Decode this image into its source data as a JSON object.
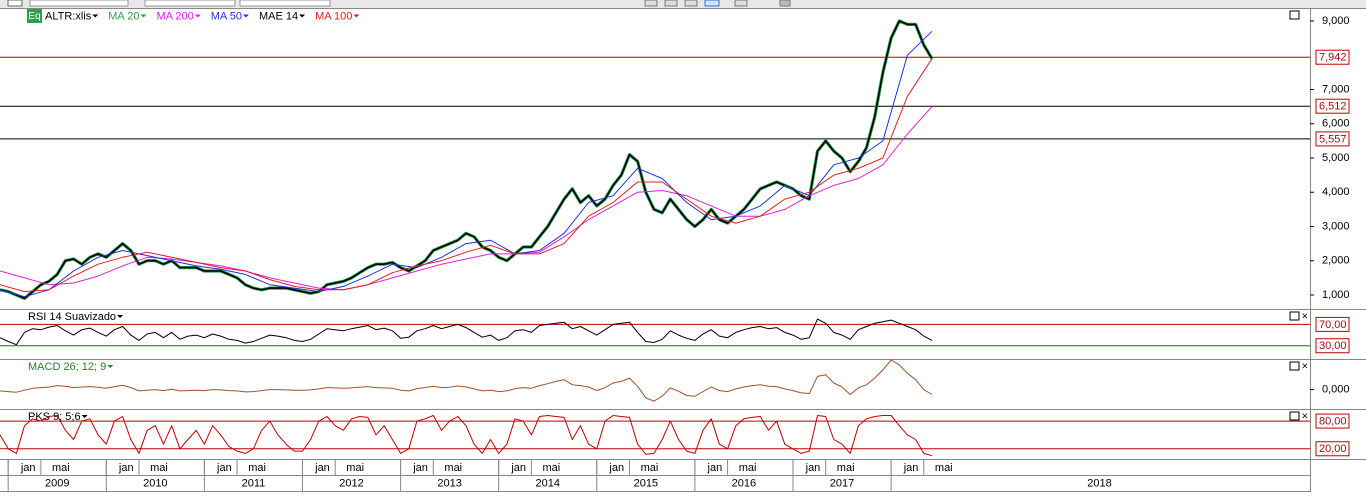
{
  "source_icon": "Eq",
  "chart_data": [
    {
      "type": "line",
      "xlim": [
        "2008-12",
        "2022-04"
      ],
      "ylim": [
        620,
        9350
      ],
      "x": [
        "2008-12",
        "2009-01",
        "2009-02",
        "2009-03",
        "2009-04",
        "2009-05",
        "2009-06",
        "2009-07",
        "2009-08",
        "2009-09",
        "2009-10",
        "2009-11",
        "2009-12",
        "2010-01",
        "2010-02",
        "2010-03",
        "2010-04",
        "2010-05",
        "2010-06",
        "2010-07",
        "2010-08",
        "2010-09",
        "2010-10",
        "2010-11",
        "2010-12",
        "2011-01",
        "2011-02",
        "2011-03",
        "2011-04",
        "2011-05",
        "2011-06",
        "2011-07",
        "2011-08",
        "2011-09",
        "2011-10",
        "2011-11",
        "2011-12",
        "2012-01",
        "2012-02",
        "2012-03",
        "2012-04",
        "2012-05",
        "2012-06",
        "2012-07",
        "2012-08",
        "2012-09",
        "2012-10",
        "2012-11",
        "2012-12",
        "2013-01",
        "2013-02",
        "2013-03",
        "2013-04",
        "2013-05",
        "2013-06",
        "2013-07",
        "2013-08",
        "2013-09",
        "2013-10",
        "2013-11",
        "2013-12",
        "2014-01",
        "2014-02",
        "2014-03",
        "2014-04",
        "2014-05",
        "2014-06",
        "2014-07",
        "2014-08",
        "2014-09",
        "2014-10",
        "2014-11",
        "2014-12",
        "2015-01",
        "2015-02",
        "2015-03",
        "2015-04",
        "2015-05",
        "2015-06",
        "2015-07",
        "2015-08",
        "2015-09",
        "2015-10",
        "2015-11",
        "2015-12",
        "2016-01",
        "2016-02",
        "2016-03",
        "2016-04",
        "2016-05",
        "2016-06",
        "2016-07",
        "2016-08",
        "2016-09",
        "2016-10",
        "2016-11",
        "2016-12",
        "2017-01",
        "2017-02",
        "2017-03",
        "2017-04",
        "2017-05",
        "2017-06",
        "2017-07",
        "2017-08",
        "2017-09",
        "2017-10",
        "2017-11",
        "2017-12",
        "2018-01",
        "2018-02",
        "2018-03",
        "2018-04",
        "2018-05",
        "2018-06"
      ],
      "series": [
        {
          "name": "ALTR:xlis",
          "color": "#000000",
          "values": [
            1150,
            1100,
            1000,
            900,
            1100,
            1300,
            1400,
            1600,
            2000,
            2050,
            1900,
            2100,
            2200,
            2100,
            2300,
            2500,
            2300,
            1900,
            2000,
            2000,
            1900,
            2000,
            1800,
            1800,
            1800,
            1700,
            1700,
            1700,
            1600,
            1500,
            1300,
            1200,
            1150,
            1200,
            1200,
            1200,
            1150,
            1100,
            1050,
            1100,
            1300,
            1350,
            1400,
            1500,
            1650,
            1800,
            1900,
            1900,
            1950,
            1800,
            1700,
            1850,
            2000,
            2300,
            2400,
            2500,
            2600,
            2800,
            2700,
            2400,
            2300,
            2100,
            2000,
            2200,
            2400,
            2400,
            2700,
            3000,
            3400,
            3800,
            4100,
            3700,
            3900,
            3600,
            3800,
            4200,
            4500,
            5100,
            4900,
            4000,
            3500,
            3400,
            3800,
            3500,
            3200,
            3000,
            3200,
            3500,
            3200,
            3100,
            3300,
            3500,
            3800,
            4100,
            4200,
            4300,
            4200,
            4100,
            3900,
            3800,
            5200,
            5500,
            5200,
            5000,
            4600,
            4900,
            5300,
            6200,
            7500,
            8500,
            9000,
            8900,
            8900,
            8300,
            7900
          ]
        },
        {
          "name": "MA 20",
          "color": "#2e9e4f"
        },
        {
          "name": "MA 200",
          "color": "#e020e0",
          "x": [
            "2008-12",
            "2009-03",
            "2009-06",
            "2009-09",
            "2009-12",
            "2010-03",
            "2010-06",
            "2010-09",
            "2010-12",
            "2011-03",
            "2011-06",
            "2011-09",
            "2011-12",
            "2012-03",
            "2012-06",
            "2012-09",
            "2012-12",
            "2013-03",
            "2013-06",
            "2013-09",
            "2013-12",
            "2014-03",
            "2014-06",
            "2014-09",
            "2014-12",
            "2015-03",
            "2015-06",
            "2015-09",
            "2015-12",
            "2016-03",
            "2016-06",
            "2016-09",
            "2016-12",
            "2017-03",
            "2017-06",
            "2017-09",
            "2017-12",
            "2018-03",
            "2018-06"
          ],
          "values": [
            1700,
            1500,
            1300,
            1350,
            1550,
            1850,
            2100,
            2050,
            1950,
            1850,
            1700,
            1500,
            1350,
            1200,
            1150,
            1300,
            1500,
            1700,
            1900,
            2050,
            2200,
            2200,
            2250,
            2700,
            3200,
            3600,
            4000,
            4050,
            3900,
            3600,
            3300,
            3300,
            3500,
            3900,
            4200,
            4400,
            4800,
            5700,
            6500
          ]
        },
        {
          "name": "MA 50",
          "color": "#2030e0",
          "x": [
            "2008-12",
            "2009-03",
            "2009-06",
            "2009-09",
            "2009-12",
            "2010-03",
            "2010-06",
            "2010-09",
            "2010-12",
            "2011-03",
            "2011-06",
            "2011-09",
            "2011-12",
            "2012-03",
            "2012-06",
            "2012-09",
            "2012-12",
            "2013-03",
            "2013-06",
            "2013-09",
            "2013-12",
            "2014-03",
            "2014-06",
            "2014-09",
            "2014-12",
            "2015-03",
            "2015-06",
            "2015-09",
            "2015-12",
            "2016-03",
            "2016-06",
            "2016-09",
            "2016-12",
            "2017-03",
            "2017-06",
            "2017-09",
            "2017-12",
            "2018-03",
            "2018-06"
          ],
          "values": [
            1150,
            950,
            1150,
            1700,
            2100,
            2300,
            2150,
            2000,
            1850,
            1750,
            1600,
            1300,
            1200,
            1100,
            1250,
            1550,
            1900,
            1800,
            2100,
            2500,
            2600,
            2200,
            2300,
            2800,
            3700,
            3900,
            4700,
            4400,
            3700,
            3200,
            3300,
            3600,
            4200,
            3900,
            4800,
            5000,
            5500,
            8000,
            8700
          ]
        },
        {
          "name": "MAE 14",
          "color": "#000000"
        },
        {
          "name": "MA 100",
          "color": "#e02020",
          "x": [
            "2008-12",
            "2009-03",
            "2009-06",
            "2009-09",
            "2009-12",
            "2010-03",
            "2010-06",
            "2010-09",
            "2010-12",
            "2011-03",
            "2011-06",
            "2011-09",
            "2011-12",
            "2012-03",
            "2012-06",
            "2012-09",
            "2012-12",
            "2013-03",
            "2013-06",
            "2013-09",
            "2013-12",
            "2014-03",
            "2014-06",
            "2014-09",
            "2014-12",
            "2015-03",
            "2015-06",
            "2015-09",
            "2015-12",
            "2016-03",
            "2016-06",
            "2016-09",
            "2016-12",
            "2017-03",
            "2017-06",
            "2017-09",
            "2017-12",
            "2018-03",
            "2018-06"
          ],
          "values": [
            1300,
            1100,
            1150,
            1550,
            1900,
            2100,
            2250,
            2100,
            1950,
            1800,
            1700,
            1450,
            1250,
            1150,
            1150,
            1300,
            1650,
            1850,
            2000,
            2250,
            2450,
            2200,
            2200,
            2500,
            3300,
            3700,
            4300,
            4300,
            3800,
            3300,
            3100,
            3300,
            3800,
            4000,
            4500,
            4700,
            5000,
            6800,
            7900
          ]
        }
      ],
      "yticks": [
        {
          "value": 1000,
          "label": "1,000"
        },
        {
          "value": 2000,
          "label": "2,000"
        },
        {
          "value": 3000,
          "label": "3,000"
        },
        {
          "value": 4000,
          "label": "4,000"
        },
        {
          "value": 5000,
          "label": "5,000"
        },
        {
          "value": 6000,
          "label": "6,000"
        },
        {
          "value": 7000,
          "label": "7,000"
        },
        {
          "value": 9000,
          "label": "9,000"
        }
      ],
      "hlines": [
        {
          "value": 7942,
          "label": "7,942",
          "color": "#c00000"
        },
        {
          "value": 6512,
          "label": "6,512",
          "color": "#000000"
        },
        {
          "value": 5557,
          "label": "5,557",
          "color": "#000000"
        }
      ],
      "xticks": [
        {
          "value": "2009-01",
          "label": "jan"
        },
        {
          "value": "2009-05",
          "label": "mai"
        },
        {
          "value": "2010-01",
          "label": "jan"
        },
        {
          "value": "2010-05",
          "label": "mai"
        },
        {
          "value": "2011-01",
          "label": "jan"
        },
        {
          "value": "2011-05",
          "label": "mai"
        },
        {
          "value": "2012-01",
          "label": "jan"
        },
        {
          "value": "2012-05",
          "label": "mai"
        },
        {
          "value": "2013-01",
          "label": "jan"
        },
        {
          "value": "2013-05",
          "label": "mai"
        },
        {
          "value": "2014-01",
          "label": "jan"
        },
        {
          "value": "2014-05",
          "label": "mai"
        },
        {
          "value": "2015-01",
          "label": "jan"
        },
        {
          "value": "2015-05",
          "label": "mai"
        },
        {
          "value": "2016-01",
          "label": "jan"
        },
        {
          "value": "2016-05",
          "label": "mai"
        },
        {
          "value": "2017-01",
          "label": "jan"
        },
        {
          "value": "2017-05",
          "label": "mai"
        },
        {
          "value": "2018-01",
          "label": "jan"
        },
        {
          "value": "2018-05",
          "label": "mai"
        }
      ],
      "years": [
        2009,
        2010,
        2011,
        2012,
        2013,
        2014,
        2015,
        2016,
        2017,
        2018
      ]
    },
    {
      "type": "line",
      "title": "RSI 14 Suavizado",
      "color": "#000000",
      "ylim": [
        7,
        97
      ],
      "values": [
        45,
        38,
        32,
        55,
        62,
        60,
        65,
        68,
        58,
        50,
        60,
        63,
        55,
        48,
        60,
        66,
        50,
        40,
        52,
        55,
        45,
        55,
        42,
        48,
        50,
        45,
        52,
        48,
        42,
        40,
        35,
        38,
        44,
        50,
        48,
        45,
        40,
        38,
        42,
        52,
        62,
        60,
        58,
        62,
        65,
        68,
        60,
        63,
        58,
        44,
        46,
        58,
        62,
        68,
        62,
        66,
        70,
        64,
        55,
        46,
        50,
        40,
        45,
        58,
        60,
        55,
        68,
        70,
        72,
        74,
        62,
        66,
        58,
        50,
        60,
        70,
        72,
        74,
        55,
        38,
        36,
        42,
        58,
        50,
        44,
        40,
        52,
        60,
        48,
        45,
        55,
        60,
        64,
        66,
        62,
        64,
        55,
        50,
        42,
        45,
        80,
        72,
        55,
        50,
        42,
        60,
        66,
        72,
        75,
        78,
        72,
        66,
        60,
        48,
        40
      ],
      "hlines": [
        {
          "value": 70,
          "label": "70,00",
          "color": "#c00000"
        },
        {
          "value": 30,
          "label": "30,00",
          "color": "#008000"
        }
      ]
    },
    {
      "type": "line",
      "title": "MACD 26; 12; 9",
      "color": "#a0522d",
      "ylim": [
        -560,
        900
      ],
      "values": [
        -40,
        -60,
        -80,
        -20,
        40,
        60,
        80,
        120,
        100,
        60,
        80,
        90,
        70,
        40,
        90,
        130,
        60,
        -40,
        -20,
        0,
        -30,
        10,
        -40,
        -30,
        -20,
        -30,
        0,
        -10,
        -30,
        -40,
        -70,
        -60,
        -30,
        0,
        0,
        -10,
        -20,
        -20,
        -10,
        20,
        60,
        50,
        40,
        50,
        70,
        90,
        60,
        50,
        40,
        -20,
        -40,
        30,
        60,
        100,
        60,
        70,
        110,
        80,
        20,
        -40,
        -20,
        -60,
        -40,
        30,
        60,
        40,
        120,
        180,
        250,
        300,
        150,
        120,
        80,
        -30,
        60,
        200,
        250,
        350,
        100,
        -250,
        -350,
        -200,
        50,
        -50,
        -180,
        -200,
        -60,
        80,
        -30,
        -60,
        20,
        80,
        120,
        150,
        100,
        90,
        20,
        -30,
        -100,
        -120,
        400,
        450,
        200,
        80,
        -150,
        50,
        150,
        350,
        600,
        900,
        750,
        500,
        300,
        0,
        -150
      ],
      "yticks": [
        {
          "value": 0,
          "label": "0,000"
        }
      ]
    },
    {
      "type": "line",
      "title": "PKS 9; 5;6",
      "color": "#c00000",
      "ylim": [
        0,
        104
      ],
      "values": [
        50,
        20,
        10,
        70,
        85,
        80,
        90,
        92,
        60,
        40,
        80,
        85,
        50,
        30,
        80,
        90,
        40,
        10,
        60,
        70,
        30,
        70,
        20,
        40,
        60,
        30,
        70,
        50,
        25,
        15,
        10,
        20,
        60,
        80,
        50,
        30,
        15,
        15,
        40,
        80,
        90,
        70,
        60,
        85,
        90,
        88,
        50,
        70,
        40,
        10,
        20,
        80,
        85,
        92,
        60,
        80,
        90,
        70,
        30,
        10,
        40,
        10,
        30,
        85,
        80,
        50,
        90,
        92,
        90,
        88,
        40,
        70,
        30,
        20,
        80,
        92,
        90,
        88,
        30,
        8,
        10,
        40,
        80,
        40,
        15,
        10,
        60,
        85,
        30,
        20,
        70,
        85,
        88,
        90,
        60,
        80,
        30,
        20,
        10,
        15,
        92,
        90,
        40,
        30,
        10,
        70,
        85,
        90,
        92,
        92,
        70,
        50,
        40,
        10,
        5
      ],
      "hlines": [
        {
          "value": 80,
          "label": "80,00",
          "color": "#c00000"
        },
        {
          "value": 20,
          "label": "20,00",
          "color": "#c00000"
        }
      ]
    }
  ]
}
